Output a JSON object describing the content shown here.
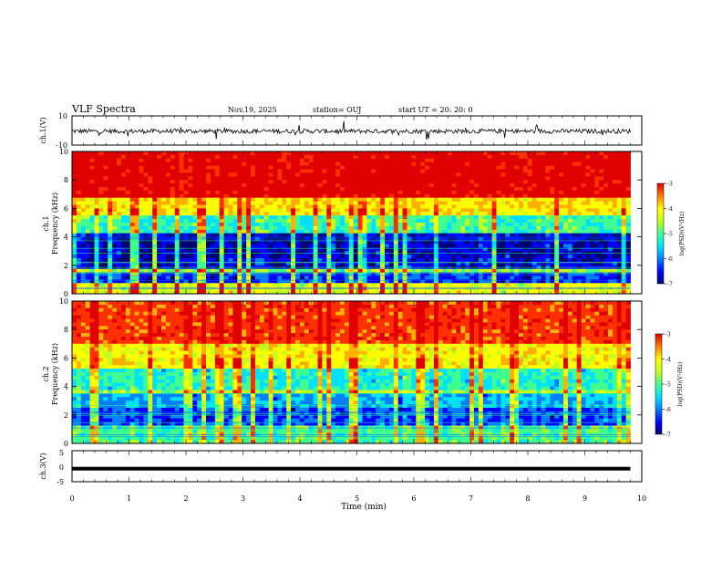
{
  "header": {
    "title": "VLF Spectra",
    "date": "Nov.19, 2025",
    "station": "station= OUJ",
    "start": "start  UT =   20: 20: 0"
  },
  "chart_data": [
    {
      "type": "line",
      "panel": "ch1-waveform",
      "ylabel": "ch.1(V)",
      "ylim": [
        -10,
        10
      ],
      "yticks": [
        10,
        -10
      ],
      "x_unit": "min",
      "xlim": [
        0,
        10
      ],
      "data_extent_min": 9.8,
      "baseline": -0.5,
      "noise_amplitude": 1.5,
      "spike_amplitude": 6
    },
    {
      "type": "heatmap",
      "panel": "ch1-spectrogram",
      "ylabel": "ch.1\nFrequency  (kHz)",
      "ylabel_lines": [
        "ch.1",
        "Frequency  (kHz)"
      ],
      "ylim": [
        0,
        10
      ],
      "yticks": [
        "0",
        "2",
        "4",
        "6",
        "8",
        "10"
      ],
      "xlim": [
        0,
        9.8
      ],
      "colorbar": {
        "label": "log(PSD)(V²/Hz)",
        "range": [
          -7,
          -3
        ],
        "ticks": [
          "-3",
          "-4",
          "-5",
          "-6",
          "-7"
        ]
      },
      "bands_khz": [
        {
          "from": 0,
          "to": 0.8,
          "level": -4.6
        },
        {
          "from": 0.8,
          "to": 1.5,
          "level": -6.3
        },
        {
          "from": 1.5,
          "to": 1.7,
          "level": -5.0
        },
        {
          "from": 1.7,
          "to": 2.5,
          "level": -6.5
        },
        {
          "from": 2.5,
          "to": 4.3,
          "level": -6.6
        },
        {
          "from": 4.3,
          "to": 5.5,
          "level": -5.3
        },
        {
          "from": 5.5,
          "to": 6.8,
          "level": -4.3
        },
        {
          "from": 6.8,
          "to": 10,
          "level": -3.2
        }
      ]
    },
    {
      "type": "heatmap",
      "panel": "ch2-spectrogram",
      "ylabel": "ch.2\nFrequency  (kHz)",
      "ylabel_lines": [
        "ch.2",
        "Frequency  (kHz)"
      ],
      "ylim": [
        0,
        10
      ],
      "yticks": [
        "0",
        "2",
        "4",
        "6",
        "8",
        "10"
      ],
      "xlim": [
        0,
        9.8
      ],
      "colorbar": {
        "label": "log(PSD)(V²/Hz)",
        "range": [
          -7,
          -3
        ],
        "ticks": [
          "-3",
          "-4",
          "-5",
          "-6",
          "-7"
        ]
      },
      "bands_khz": [
        {
          "from": 0,
          "to": 1.2,
          "level": -5.2
        },
        {
          "from": 1.2,
          "to": 2.6,
          "level": -6.2
        },
        {
          "from": 2.6,
          "to": 3.4,
          "level": -5.8
        },
        {
          "from": 3.4,
          "to": 3.8,
          "level": -4.8
        },
        {
          "from": 3.8,
          "to": 5.2,
          "level": -5.4
        },
        {
          "from": 5.2,
          "to": 7.0,
          "level": -4.4
        },
        {
          "from": 7.0,
          "to": 10,
          "level": -3.6
        }
      ]
    },
    {
      "type": "line",
      "panel": "ch3-waveform",
      "ylabel": "ch.3(V)",
      "ylim": [
        -5,
        5
      ],
      "yticks": [
        "5",
        "0",
        "-5"
      ],
      "xlim": [
        0,
        10
      ],
      "data_extent_min": 9.8,
      "value": -0.8
    }
  ],
  "xaxis": {
    "label": "Time  (min)",
    "ticks": [
      "0",
      "1",
      "2",
      "3",
      "4",
      "5",
      "6",
      "7",
      "8",
      "9",
      "10"
    ]
  },
  "colors": {
    "colormap": [
      "#000070",
      "#0000ff",
      "#0080ff",
      "#00e0ff",
      "#40ff90",
      "#c0ff20",
      "#ffff00",
      "#ffb000",
      "#ff3000",
      "#e00000"
    ]
  }
}
